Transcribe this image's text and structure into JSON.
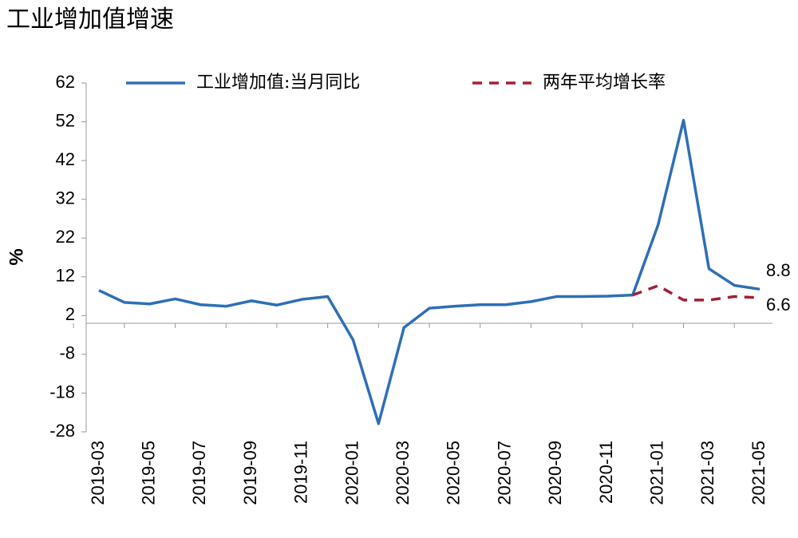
{
  "chart_data": {
    "type": "line",
    "title": "工业增加值增速",
    "y_label": "%",
    "categories": [
      "2019-03",
      null,
      "2019-05",
      null,
      "2019-07",
      null,
      "2019-09",
      null,
      "2019-11",
      null,
      "2020-01",
      null,
      "2020-03",
      null,
      "2020-05",
      null,
      "2020-07",
      null,
      "2020-09",
      null,
      "2020-11",
      null,
      "2021-01",
      null,
      "2021-03",
      null,
      "2021-05"
    ],
    "series": [
      {
        "name": "工业增加值:当月同比",
        "color": "#2e6fb7",
        "dash": false,
        "values": [
          8.5,
          5.4,
          5.0,
          6.3,
          4.8,
          4.4,
          5.8,
          4.7,
          6.2,
          6.9,
          -4.3,
          -25.9,
          -1.1,
          3.9,
          4.4,
          4.8,
          4.8,
          5.6,
          6.9,
          6.9,
          7.0,
          7.3,
          25.4,
          52.4,
          14.1,
          9.8,
          8.8
        ]
      },
      {
        "name": "两年平均增长率",
        "color": "#a31f34",
        "dash": true,
        "values": [
          null,
          null,
          null,
          null,
          null,
          null,
          null,
          null,
          null,
          null,
          null,
          null,
          null,
          null,
          null,
          null,
          null,
          null,
          null,
          null,
          null,
          7.3,
          9.7,
          6.0,
          6.0,
          6.9,
          6.6
        ]
      }
    ],
    "ylim": [
      -28,
      62
    ],
    "yticks": [
      -28,
      -18,
      -8,
      2,
      12,
      22,
      32,
      42,
      52,
      62
    ],
    "legend": "top"
  }
}
